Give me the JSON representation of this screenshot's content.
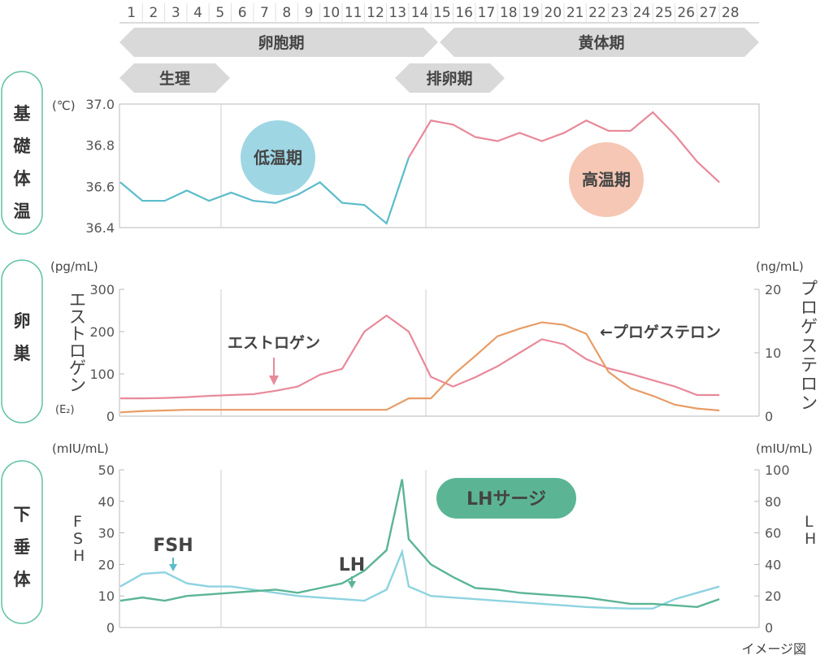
{
  "days": [
    "1",
    "2",
    "3",
    "4",
    "5",
    "6",
    "7",
    "8",
    "9",
    "10",
    "11",
    "12",
    "13",
    "14",
    "15",
    "16",
    "17",
    "18",
    "19",
    "20",
    "21",
    "22",
    "23",
    "24",
    "25",
    "26",
    "27",
    "28"
  ],
  "phases": {
    "follicular": "卵胞期",
    "luteal": "黄体期",
    "menstruation": "生理",
    "ovulation": "排卵期"
  },
  "sections": {
    "bbt": "基礎体温",
    "ovary": "卵巣",
    "pituitary": "下垂体"
  },
  "footnote": "イメージ図",
  "colors": {
    "bbt": "#5bbccb",
    "estrogen": "#e8899a",
    "bbt_high": "#e8899a",
    "progesterone": "#e89c66",
    "fsh": "#8ed3e0",
    "fsh_label": "#5bbccb",
    "lh": "#5bb594",
    "low_bubble": "#9fd6e4",
    "high_bubble": "#f5c7b4",
    "lh_pill": "#5bb594"
  },
  "chart_data": [
    {
      "type": "line",
      "name": "bbt",
      "y_unit": "(℃)",
      "ylim": [
        36.4,
        37.0
      ],
      "yticks": [
        "37.0",
        "36.8",
        "36.6",
        "36.4"
      ],
      "x": [
        1,
        2,
        3,
        4,
        5,
        6,
        7,
        8,
        9,
        10,
        11,
        12,
        13,
        14,
        15,
        16,
        17,
        18,
        19,
        20,
        21,
        22,
        23,
        24,
        25,
        26,
        27,
        28
      ],
      "values": [
        36.62,
        36.53,
        36.53,
        36.58,
        36.53,
        36.57,
        36.53,
        36.52,
        36.56,
        36.62,
        36.52,
        36.51,
        36.42,
        36.74,
        36.92,
        36.9,
        36.84,
        36.82,
        36.86,
        36.82,
        36.86,
        36.92,
        36.87,
        36.87,
        36.96,
        36.85,
        36.72,
        36.62
      ],
      "annotations": {
        "low": "低温期",
        "high": "高温期"
      }
    },
    {
      "type": "line",
      "name": "ovary",
      "left_unit": "(pg/mL)",
      "right_unit": "(ng/mL)",
      "left_axis_label": "エストロゲン",
      "left_axis_sub": "(E₂)",
      "right_axis_label": "プロゲステロン",
      "ylim_left": [
        0,
        300
      ],
      "ylim_right": [
        0,
        20
      ],
      "yticks_left": [
        "300",
        "200",
        "100",
        "0"
      ],
      "yticks_right": [
        "20",
        "10",
        "0"
      ],
      "x": [
        1,
        2,
        3,
        4,
        5,
        6,
        7,
        8,
        9,
        10,
        11,
        12,
        13,
        14,
        15,
        16,
        17,
        18,
        19,
        20,
        21,
        22,
        23,
        24,
        25,
        26,
        27,
        28
      ],
      "series": [
        {
          "name": "エストロゲン",
          "axis": "left",
          "values": [
            42,
            42,
            43,
            45,
            48,
            50,
            52,
            60,
            70,
            98,
            112,
            200,
            238,
            200,
            93,
            70,
            92,
            118,
            150,
            182,
            170,
            135,
            113,
            100,
            85,
            70,
            50,
            50
          ]
        },
        {
          "name": "プロゲステロン",
          "axis": "right",
          "values": [
            0.6,
            0.8,
            0.9,
            1.0,
            1.0,
            1.0,
            1.0,
            1.0,
            1.0,
            1.0,
            1.0,
            1.0,
            1.0,
            2.8,
            2.8,
            6.5,
            9.5,
            12.6,
            13.8,
            14.8,
            14.4,
            13.0,
            7.0,
            4.4,
            3.2,
            1.8,
            1.2,
            0.9
          ]
        }
      ],
      "labels": {
        "estrogen": "エストロゲン",
        "progesterone": "←プロゲステロン"
      }
    },
    {
      "type": "line",
      "name": "pituitary",
      "left_unit": "(mIU/mL)",
      "right_unit": "(mIU/mL)",
      "left_axis_label": "FSH",
      "right_axis_label": "LH",
      "ylim_left": [
        0,
        50
      ],
      "ylim_right": [
        0,
        100
      ],
      "yticks_left": [
        "50",
        "40",
        "30",
        "20",
        "10",
        "0"
      ],
      "yticks_right": [
        "100",
        "80",
        "60",
        "40",
        "20",
        "0"
      ],
      "x": [
        1,
        2,
        3,
        4,
        5,
        6,
        7,
        8,
        9,
        10,
        11,
        12,
        13,
        13.7,
        14,
        15,
        16,
        17,
        18,
        19,
        20,
        21,
        22,
        23,
        24,
        25,
        26,
        27,
        28
      ],
      "series": [
        {
          "name": "FSH",
          "axis": "left",
          "values": [
            13,
            17,
            17.5,
            14,
            13,
            13,
            12,
            11,
            10,
            9.5,
            9,
            8.5,
            12,
            24,
            13,
            10,
            9.5,
            9,
            8.5,
            8,
            7.5,
            7,
            6.5,
            6.2,
            6,
            6,
            9,
            11,
            13
          ]
        },
        {
          "name": "LH",
          "axis": "right",
          "values": [
            17,
            19,
            17,
            20,
            21,
            22,
            23,
            24,
            22,
            25,
            28,
            36,
            49,
            94,
            56,
            40,
            32,
            25,
            24,
            22,
            21,
            20,
            19,
            17,
            15,
            15,
            14,
            13,
            18
          ]
        }
      ],
      "labels": {
        "fsh": "FSH",
        "lh": "LH",
        "surge": "LHサージ"
      }
    }
  ]
}
